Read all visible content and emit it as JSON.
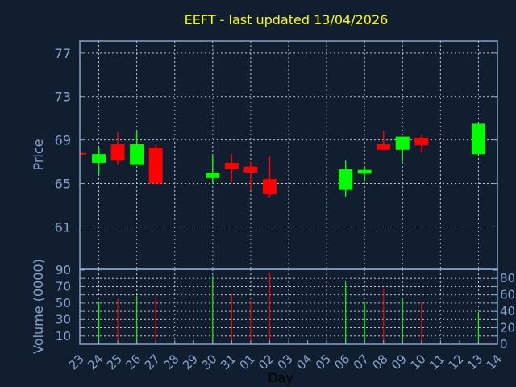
{
  "chart_data": {
    "type": "candlestick",
    "title": "EEFT - last updated 13/04/2026",
    "xlabel": "Day",
    "ylabel": "Price",
    "volume_ylabel": "Volume (0000)",
    "x_tick_labels": [
      "23",
      "24",
      "25",
      "26",
      "27",
      "28",
      "29",
      "30",
      "31",
      "01",
      "02",
      "03",
      "04",
      "05",
      "06",
      "07",
      "08",
      "09",
      "10",
      "11",
      "12",
      "13",
      "14"
    ],
    "y_ticks": [
      61,
      65,
      69,
      73,
      77
    ],
    "ylim": [
      57.1,
      78.1
    ],
    "volume_ticks": [
      0,
      10,
      20,
      30,
      40,
      50,
      60,
      70,
      80,
      90
    ],
    "volume_ylim": [
      0,
      90
    ],
    "grid": true,
    "colors": {
      "up": "#00ff00",
      "down": "#ff0000",
      "title": "#ffff00",
      "background": "#101e2f",
      "axis": "#86a4cc"
    },
    "candles": [
      {
        "day": "23",
        "open": 67.8,
        "high": 67.8,
        "low": 67.7,
        "close": 67.7,
        "volume": null
      },
      {
        "day": "24",
        "open": 66.9,
        "high": 68.3,
        "low": 65.8,
        "close": 67.7,
        "volume": 51.5
      },
      {
        "day": "25",
        "open": 68.6,
        "high": 69.7,
        "low": 66.7,
        "close": 67.1,
        "volume": 55.8
      },
      {
        "day": "26",
        "open": 66.7,
        "high": 69.8,
        "low": 66.7,
        "close": 68.6,
        "volume": 59
      },
      {
        "day": "27",
        "open": 68.3,
        "high": 68.6,
        "low": 65.0,
        "close": 65.0,
        "volume": 57
      },
      {
        "day": "30",
        "open": 65.5,
        "high": 67.5,
        "low": 65.0,
        "close": 66.0,
        "volume": 83
      },
      {
        "day": "31",
        "open": 66.9,
        "high": 67.7,
        "low": 65.1,
        "close": 66.3,
        "volume": 61
      },
      {
        "day": "01",
        "open": 66.55,
        "high": 67.0,
        "low": 64.4,
        "close": 66.0,
        "volume": 52.8
      },
      {
        "day": "02",
        "open": 65.4,
        "high": 67.5,
        "low": 63.7,
        "close": 64.0,
        "volume": 87
      },
      {
        "day": "06",
        "open": 64.4,
        "high": 67.1,
        "low": 63.8,
        "close": 66.3,
        "volume": 76
      },
      {
        "day": "07",
        "open": 65.9,
        "high": 66.6,
        "low": 65.2,
        "close": 66.25,
        "volume": 51
      },
      {
        "day": "08",
        "open": 68.6,
        "high": 69.8,
        "low": 68.05,
        "close": 68.1,
        "volume": 67.5
      },
      {
        "day": "09",
        "open": 68.1,
        "high": 69.3,
        "low": 67.0,
        "close": 69.3,
        "volume": 55.8
      },
      {
        "day": "10",
        "open": 69.2,
        "high": 69.45,
        "low": 67.85,
        "close": 68.5,
        "volume": 51.5
      },
      {
        "day": "13",
        "open": 67.7,
        "high": 70.6,
        "low": 67.7,
        "close": 70.5,
        "volume": 39.4
      }
    ]
  }
}
